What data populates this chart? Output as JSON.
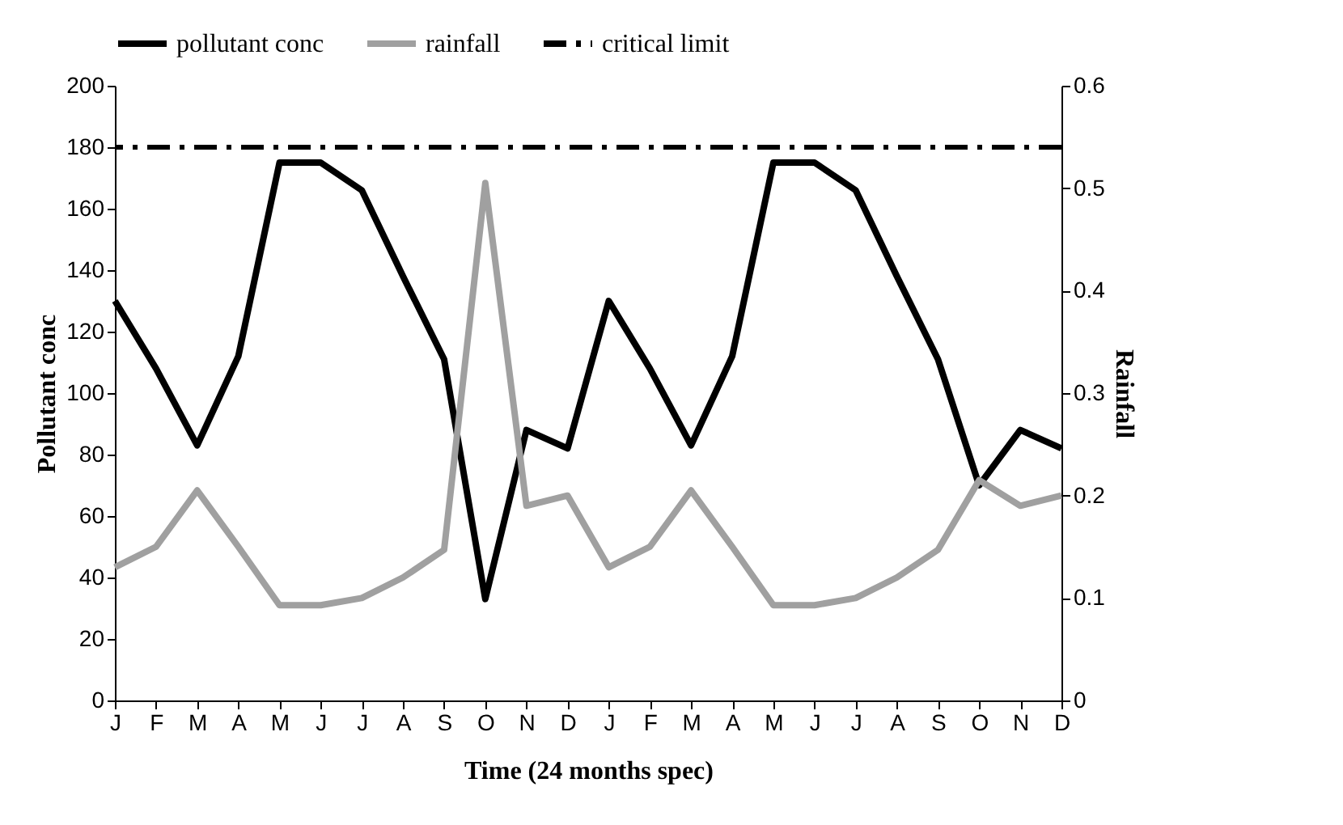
{
  "chart_data": {
    "type": "line",
    "categories": [
      "J",
      "F",
      "M",
      "A",
      "M",
      "J",
      "J",
      "A",
      "S",
      "O",
      "N",
      "D",
      "J",
      "F",
      "M",
      "A",
      "M",
      "J",
      "J",
      "A",
      "S",
      "O",
      "N",
      "D"
    ],
    "series": [
      {
        "name": "pollutant conc",
        "color": "#000000",
        "values": [
          130,
          108,
          83,
          112,
          175,
          175,
          166,
          138,
          111,
          33,
          88,
          82,
          130,
          108,
          83,
          112,
          175,
          175,
          166,
          138,
          111,
          70,
          88,
          82
        ]
      },
      {
        "name": "rainfall",
        "color": "#a0a0a0",
        "axis": "y2",
        "values": [
          0.13,
          0.15,
          0.205,
          0.15,
          0.093,
          0.093,
          0.1,
          0.12,
          0.147,
          0.505,
          0.19,
          0.2,
          0.13,
          0.15,
          0.205,
          0.15,
          0.093,
          0.093,
          0.1,
          0.12,
          0.147,
          0.215,
          0.19,
          0.2
        ]
      }
    ],
    "ref_lines": [
      {
        "axis": "y",
        "value": 180,
        "label": "critical limit",
        "color": "#000000",
        "line_style": "dashed"
      }
    ],
    "xlabel": "Time (24 months spec)",
    "ylabel": "Pollutant conc",
    "y2label": "Rainfall",
    "ylim": [
      0,
      200
    ],
    "yticks": [
      0,
      20,
      40,
      60,
      80,
      100,
      120,
      140,
      160,
      180,
      200
    ],
    "y2lim": [
      0,
      0.6
    ],
    "y2ticks": [
      0,
      0.1,
      0.2,
      0.3,
      0.4,
      0.5,
      0.6
    ],
    "legend": "top",
    "grid": false,
    "marker": "none",
    "line_style": "solid"
  }
}
